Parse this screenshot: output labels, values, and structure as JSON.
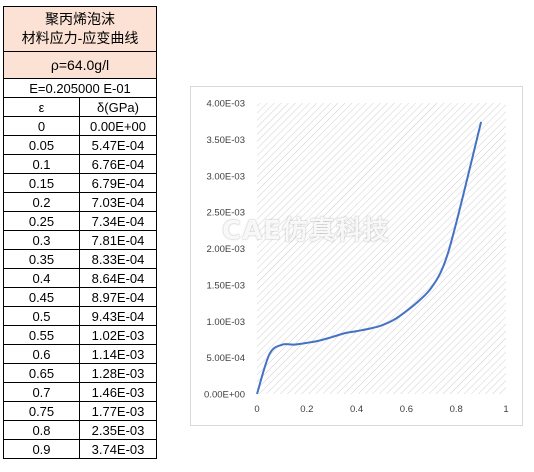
{
  "table": {
    "title_line1": "聚丙烯泡沫",
    "title_line2": "材料应力-应变曲线",
    "density": "ρ=64.0g/l",
    "modulus": "E=0.205000 E-01",
    "header_strain": "ε",
    "header_stress": "δ(GPa)",
    "rows": [
      {
        "strain": "0",
        "stress": "0.00E+00"
      },
      {
        "strain": "0.05",
        "stress": "5.47E-04"
      },
      {
        "strain": "0.1",
        "stress": "6.76E-04"
      },
      {
        "strain": "0.15",
        "stress": "6.79E-04"
      },
      {
        "strain": "0.2",
        "stress": "7.03E-04"
      },
      {
        "strain": "0.25",
        "stress": "7.34E-04"
      },
      {
        "strain": "0.3",
        "stress": "7.81E-04"
      },
      {
        "strain": "0.35",
        "stress": "8.33E-04"
      },
      {
        "strain": "0.4",
        "stress": "8.64E-04"
      },
      {
        "strain": "0.45",
        "stress": "8.97E-04"
      },
      {
        "strain": "0.5",
        "stress": "9.43E-04"
      },
      {
        "strain": "0.55",
        "stress": "1.02E-03"
      },
      {
        "strain": "0.6",
        "stress": "1.14E-03"
      },
      {
        "strain": "0.65",
        "stress": "1.28E-03"
      },
      {
        "strain": "0.7",
        "stress": "1.46E-03"
      },
      {
        "strain": "0.75",
        "stress": "1.77E-03"
      },
      {
        "strain": "0.8",
        "stress": "2.35E-03"
      },
      {
        "strain": "0.9",
        "stress": "3.74E-03"
      }
    ]
  },
  "watermark": "CAE仿真科技",
  "chart_data": {
    "type": "line",
    "title": "",
    "xlabel": "",
    "ylabel": "",
    "x": [
      0,
      0.05,
      0.1,
      0.15,
      0.2,
      0.25,
      0.3,
      0.35,
      0.4,
      0.45,
      0.5,
      0.55,
      0.6,
      0.65,
      0.7,
      0.75,
      0.8,
      0.9
    ],
    "series": [
      {
        "values": [
          0,
          0.000547,
          0.000676,
          0.000679,
          0.000703,
          0.000734,
          0.000781,
          0.000833,
          0.000864,
          0.000897,
          0.000943,
          0.00102,
          0.00114,
          0.00128,
          0.00146,
          0.00177,
          0.00235,
          0.00374
        ]
      }
    ],
    "xlim": [
      0,
      1
    ],
    "ylim": [
      0,
      0.004
    ],
    "x_ticks": [
      0,
      0.2,
      0.4,
      0.6,
      0.8,
      1
    ],
    "x_tick_labels": [
      "0",
      "0.2",
      "0.4",
      "0.6",
      "0.8",
      "1"
    ],
    "y_ticks": [
      0,
      0.0005,
      0.001,
      0.0015,
      0.002,
      0.0025,
      0.003,
      0.0035,
      0.004
    ],
    "y_tick_labels": [
      "0.00E+00",
      "5.00E-04",
      "1.00E-03",
      "1.50E-03",
      "2.00E-03",
      "2.50E-03",
      "3.00E-03",
      "3.50E-03",
      "4.00E-03"
    ],
    "grid": false,
    "line_color": "#4472c4",
    "hatch_color": "#d0d0d0",
    "frame_color": "#d9d9d9"
  }
}
